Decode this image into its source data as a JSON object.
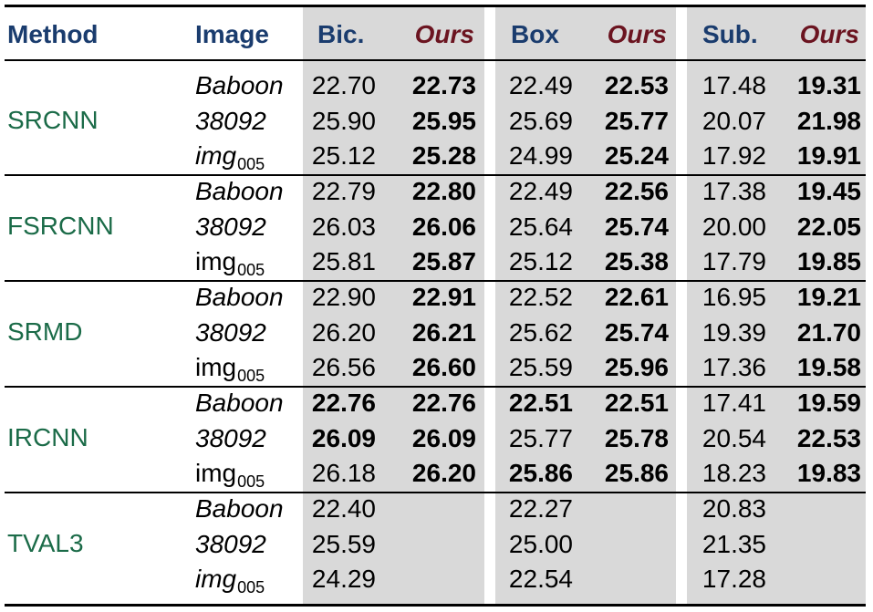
{
  "columns": {
    "method": "Method",
    "image": "Image",
    "bic": "Bic.",
    "bic_ours": "Ours",
    "box": "Box",
    "box_ours": "Ours",
    "sub": "Sub.",
    "sub_ours": "Ours"
  },
  "colors": {
    "header_blue": "#1a3c6e",
    "ours_red": "#6b1420",
    "method_green": "#1b6b48",
    "shade_gray": "#d9d9d9"
  },
  "groups": [
    {
      "method": "SRCNN",
      "rows": [
        {
          "image": "Baboon",
          "img_sub": "",
          "italic": true,
          "values": [
            "22.70",
            "22.73",
            "22.49",
            "22.53",
            "17.48",
            "19.31"
          ],
          "bold": [
            false,
            true,
            false,
            true,
            false,
            true
          ]
        },
        {
          "image": "38092",
          "img_sub": "",
          "italic": true,
          "values": [
            "25.90",
            "25.95",
            "25.69",
            "25.77",
            "20.07",
            "21.98"
          ],
          "bold": [
            false,
            true,
            false,
            true,
            false,
            true
          ]
        },
        {
          "image": "img",
          "img_sub": "005",
          "italic": true,
          "values": [
            "25.12",
            "25.28",
            "24.99",
            "25.24",
            "17.92",
            "19.91"
          ],
          "bold": [
            false,
            true,
            false,
            true,
            false,
            true
          ]
        }
      ]
    },
    {
      "method": "FSRCNN",
      "rows": [
        {
          "image": "Baboon",
          "img_sub": "",
          "italic": true,
          "values": [
            "22.79",
            "22.80",
            "22.49",
            "22.56",
            "17.38",
            "19.45"
          ],
          "bold": [
            false,
            true,
            false,
            true,
            false,
            true
          ]
        },
        {
          "image": "38092",
          "img_sub": "",
          "italic": true,
          "values": [
            "26.03",
            "26.06",
            "25.64",
            "25.74",
            "20.00",
            "22.05"
          ],
          "bold": [
            false,
            true,
            false,
            true,
            false,
            true
          ]
        },
        {
          "image": "img",
          "img_sub": "005",
          "italic": false,
          "values": [
            "25.81",
            "25.87",
            "25.12",
            "25.38",
            "17.79",
            "19.85"
          ],
          "bold": [
            false,
            true,
            false,
            true,
            false,
            true
          ]
        }
      ]
    },
    {
      "method": "SRMD",
      "rows": [
        {
          "image": "Baboon",
          "img_sub": "",
          "italic": true,
          "values": [
            "22.90",
            "22.91",
            "22.52",
            "22.61",
            "16.95",
            "19.21"
          ],
          "bold": [
            false,
            true,
            false,
            true,
            false,
            true
          ]
        },
        {
          "image": "38092",
          "img_sub": "",
          "italic": true,
          "values": [
            "26.20",
            "26.21",
            "25.62",
            "25.74",
            "19.39",
            "21.70"
          ],
          "bold": [
            false,
            true,
            false,
            true,
            false,
            true
          ]
        },
        {
          "image": "img",
          "img_sub": "005",
          "italic": false,
          "values": [
            "26.56",
            "26.60",
            "25.59",
            "25.96",
            "17.36",
            "19.58"
          ],
          "bold": [
            false,
            true,
            false,
            true,
            false,
            true
          ]
        }
      ]
    },
    {
      "method": "IRCNN",
      "rows": [
        {
          "image": "Baboon",
          "img_sub": "",
          "italic": true,
          "values": [
            "22.76",
            "22.76",
            "22.51",
            "22.51",
            "17.41",
            "19.59"
          ],
          "bold": [
            true,
            true,
            true,
            true,
            false,
            true
          ]
        },
        {
          "image": "38092",
          "img_sub": "",
          "italic": true,
          "values": [
            "26.09",
            "26.09",
            "25.77",
            "25.78",
            "20.54",
            "22.53"
          ],
          "bold": [
            true,
            true,
            false,
            true,
            false,
            true
          ]
        },
        {
          "image": "img",
          "img_sub": "005",
          "italic": false,
          "values": [
            "26.18",
            "26.20",
            "25.86",
            "25.86",
            "18.23",
            "19.83"
          ],
          "bold": [
            false,
            true,
            true,
            true,
            false,
            true
          ]
        }
      ]
    },
    {
      "method": "TVAL3",
      "rows": [
        {
          "image": "Baboon",
          "img_sub": "",
          "italic": true,
          "values": [
            "22.40",
            "",
            "22.27",
            "",
            "20.83",
            ""
          ],
          "bold": [
            false,
            false,
            false,
            false,
            false,
            false
          ]
        },
        {
          "image": "38092",
          "img_sub": "",
          "italic": true,
          "values": [
            "25.59",
            "",
            "25.00",
            "",
            "21.35",
            ""
          ],
          "bold": [
            false,
            false,
            false,
            false,
            false,
            false
          ]
        },
        {
          "image": "img",
          "img_sub": "005",
          "italic": true,
          "values": [
            "24.29",
            "",
            "22.54",
            "",
            "17.28",
            ""
          ],
          "bold": [
            false,
            false,
            false,
            false,
            false,
            false
          ]
        }
      ]
    }
  ]
}
